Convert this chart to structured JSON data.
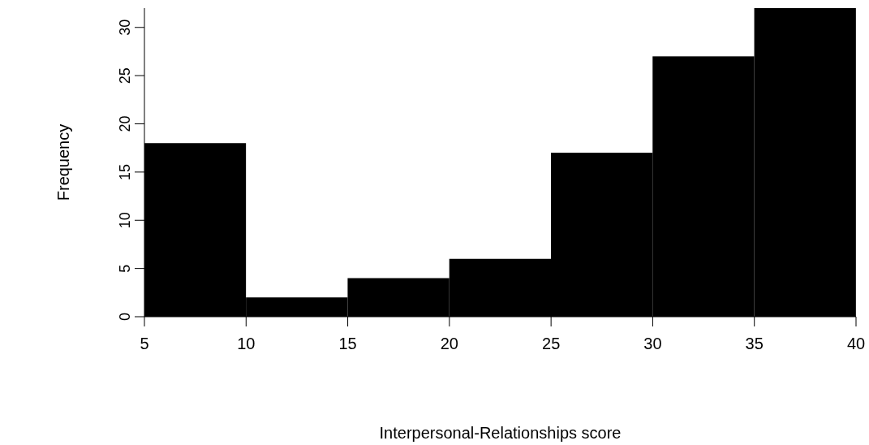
{
  "chart_data": {
    "type": "histogram",
    "xlabel": "Interpersonal-Relationships score",
    "ylabel": "Frequency",
    "bins": [
      5,
      10,
      15,
      20,
      25,
      30,
      35,
      40
    ],
    "values": [
      18,
      2,
      4,
      6,
      17,
      27,
      32
    ],
    "color": "#000000",
    "xlim": [
      5,
      40
    ],
    "xticks": [
      5,
      10,
      15,
      20,
      25,
      30,
      35,
      40
    ],
    "ylim": [
      0,
      32
    ],
    "yticks": [
      0,
      5,
      10,
      15,
      20,
      25,
      30
    ],
    "grid": false
  }
}
